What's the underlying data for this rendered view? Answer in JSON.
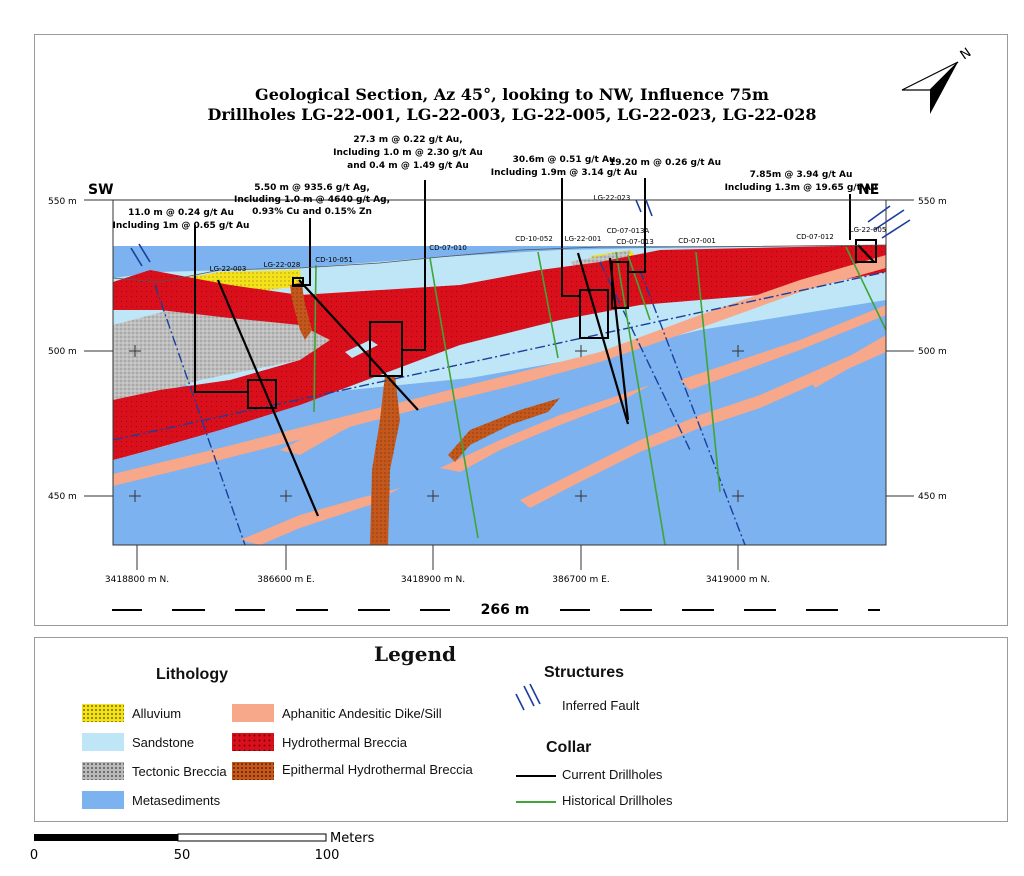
{
  "section": {
    "title_line1": "Geological Section, Az 45°, looking to NW, Influence 75m",
    "title_line2": "Drillholes LG-22-001, LG-22-003, LG-22-005, LG-22-023, LG-22-028",
    "sw_label": "SW",
    "ne_label": "NE",
    "north_label": "N",
    "elevations": {
      "left": [
        "550 m",
        "500 m",
        "450 m"
      ],
      "right": [
        "550 m",
        "500 m",
        "450 m"
      ]
    },
    "coordinates": [
      "3418800 m N.",
      "386600 m E.",
      "3418900 m N.",
      "386700 m E.",
      "3419000 m N."
    ],
    "distance_label": "266 m",
    "annotations": {
      "a1_l1": "11.0 m @ 0.24 g/t Au",
      "a1_l2": "Including 1m @ 0.65 g/t Au",
      "a2_l1": "5.50 m @ 935.6 g/t Ag,",
      "a2_l2": "Including 1.0 m @ 4640 g/t Ag,",
      "a2_l3": "0.93% Cu and 0.15% Zn",
      "a3_l1": "27.3 m @ 0.22 g/t Au,",
      "a3_l2": "Including 1.0 m @ 2.30 g/t Au",
      "a3_l3": "and 0.4 m @ 1.49 g/t Au",
      "a4_l1": "30.6m @ 0.51 g/t Au",
      "a4_l2": "Including 1.9m @ 3.14 g/t Au",
      "a5_l1": "19.20 m @ 0.26 g/t Au",
      "a6_l1": "7.85m @ 3.94 g/t Au",
      "a6_l2": "Including 1.3m @ 19.65 g/t Au"
    },
    "hole_labels": {
      "lg003": "LG-22-003",
      "lg028": "LG-22-028",
      "cd051": "CD-10-051",
      "cd010": "CD-07-010",
      "cd052": "CD-10-052",
      "lg001": "LG-22-001",
      "lg023": "LG-22-023",
      "cd013a": "CD-07-013A",
      "cd013": "CD-07-013",
      "cd001": "CD-07-001",
      "cd012": "CD-07-012",
      "lg005": "LG-22-005"
    }
  },
  "legend": {
    "title": "Legend",
    "lithology_title": "Lithology",
    "lithology": [
      {
        "label": "Alluvium",
        "color": "#f2e21a"
      },
      {
        "label": "Sandstone",
        "color": "#bfe6f7"
      },
      {
        "label": "Tectonic Breccia",
        "color": "#b9b9b9"
      },
      {
        "label": "Metasediments",
        "color": "#7cb2ef"
      },
      {
        "label": "Aphanitic Andesitic Dike/Sill",
        "color": "#f7a78a"
      },
      {
        "label": "Hydrothermal Breccia",
        "color": "#d90f1c"
      },
      {
        "label": "Epithermal Hydrothermal Breccia",
        "color": "#c4581c"
      }
    ],
    "structures_title": "Structures",
    "fault_label": "Inferred Fault",
    "collar_title": "Collar",
    "current_label": "Current Drillholes",
    "historical_label": "Historical Drillholes"
  },
  "scalebar": {
    "unit": "Meters",
    "ticks": [
      "0",
      "50",
      "100"
    ]
  },
  "colors": {
    "metasediments": "#7cb2ef",
    "sandstone": "#bfe6f7",
    "alluvium": "#f2e21a",
    "tectonic_breccia": "#b9b9b9",
    "hydrothermal_breccia": "#d90f1c",
    "dike": "#f7a78a",
    "epithermal": "#c4581c",
    "fault": "#1a3f9e",
    "current_hole": "#000000",
    "historical_hole": "#3fa535"
  }
}
